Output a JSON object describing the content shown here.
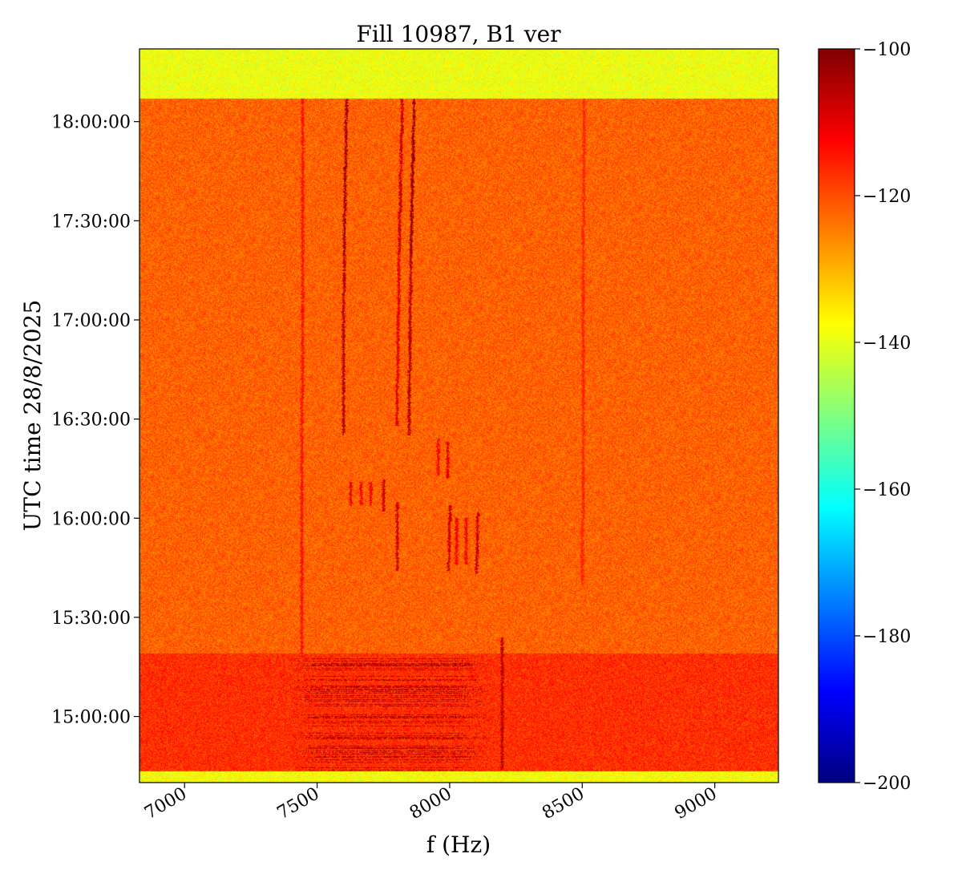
{
  "chart_data": {
    "type": "heatmap",
    "title": "Fill 10987, B1 ver",
    "xlabel": "f (Hz)",
    "ylabel": "UTC time 28/8/2025",
    "xlim": [
      6830,
      9240
    ],
    "x_ticks": [
      7000,
      7500,
      8000,
      8500,
      9000
    ],
    "x_tick_labels": [
      "7000",
      "7500",
      "8000",
      "8500",
      "9000"
    ],
    "ylim_minutes": [
      880,
      1102
    ],
    "y_ticks_minutes": [
      900,
      930,
      960,
      990,
      1020,
      1050,
      1080
    ],
    "y_tick_labels": [
      "15:00:00",
      "15:30:00",
      "16:00:00",
      "16:30:00",
      "17:00:00",
      "17:30:00",
      "18:00:00"
    ],
    "colorbar": {
      "colormap": "jet",
      "range": [
        -200,
        -100
      ],
      "ticks": [
        -100,
        -120,
        -140,
        -160,
        -180,
        -200
      ],
      "tick_labels": [
        "−100",
        "−120",
        "−140",
        "−160",
        "−180",
        "−200"
      ]
    },
    "background_levels": [
      {
        "from_minutes": 880,
        "to_minutes": 883.5,
        "level_db": -138
      },
      {
        "from_minutes": 883.5,
        "to_minutes": 919,
        "level_db": -117
      },
      {
        "from_minutes": 919,
        "to_minutes": 1087,
        "level_db": -122
      },
      {
        "from_minutes": 1087,
        "to_minutes": 1102,
        "level_db": -139
      }
    ],
    "lines": [
      {
        "f_start": 7610,
        "f_end": 7600,
        "t_start": 1040,
        "t_end": 1087,
        "level_db": -104
      },
      {
        "f_start": 7600,
        "f_end": 7598,
        "t_start": 985,
        "t_end": 1040,
        "level_db": -106
      },
      {
        "f_start": 7820,
        "f_end": 7808,
        "t_start": 1040,
        "t_end": 1087,
        "level_db": -108
      },
      {
        "f_start": 7808,
        "f_end": 7800,
        "t_start": 988,
        "t_end": 1040,
        "level_db": -110
      },
      {
        "f_start": 7865,
        "f_end": 7852,
        "t_start": 1040,
        "t_end": 1087,
        "level_db": -103
      },
      {
        "f_start": 7852,
        "f_end": 7845,
        "t_start": 985,
        "t_end": 1040,
        "level_db": -106
      },
      {
        "f_start": 7445,
        "f_end": 7440,
        "t_start": 919,
        "t_end": 1087,
        "level_db": -114
      },
      {
        "f_start": 8505,
        "f_end": 8500,
        "t_start": 940,
        "t_end": 1087,
        "level_db": -116
      },
      {
        "f_start": 8198,
        "f_end": 8198,
        "t_start": 884,
        "t_end": 924,
        "level_db": -106
      },
      {
        "f_start": 7955,
        "f_end": 7955,
        "t_start": 973,
        "t_end": 984,
        "level_db": -112
      },
      {
        "f_start": 7990,
        "f_end": 7990,
        "t_start": 972,
        "t_end": 983,
        "level_db": -110
      },
      {
        "f_start": 7625,
        "f_end": 7625,
        "t_start": 964,
        "t_end": 971,
        "level_db": -110
      },
      {
        "f_start": 7665,
        "f_end": 7665,
        "t_start": 964,
        "t_end": 971,
        "level_db": -112
      },
      {
        "f_start": 7700,
        "f_end": 7700,
        "t_start": 964,
        "t_end": 971,
        "level_db": -112
      },
      {
        "f_start": 7750,
        "f_end": 7750,
        "t_start": 962,
        "t_end": 972,
        "level_db": -108
      },
      {
        "f_start": 7800,
        "f_end": 7800,
        "t_start": 944,
        "t_end": 965,
        "level_db": -108
      },
      {
        "f_start": 8000,
        "f_end": 7995,
        "t_start": 944,
        "t_end": 964,
        "level_db": -108
      },
      {
        "f_start": 8025,
        "f_end": 8025,
        "t_start": 946,
        "t_end": 960,
        "level_db": -112
      },
      {
        "f_start": 8060,
        "f_end": 8060,
        "t_start": 946,
        "t_end": 960,
        "level_db": -112
      },
      {
        "f_start": 8105,
        "f_end": 8100,
        "t_start": 943,
        "t_end": 962,
        "level_db": -108
      }
    ],
    "broadband_patches": [
      {
        "f_min": 7400,
        "f_max": 8150,
        "t_min": 883.5,
        "t_max": 919,
        "level_db": -104
      }
    ]
  }
}
